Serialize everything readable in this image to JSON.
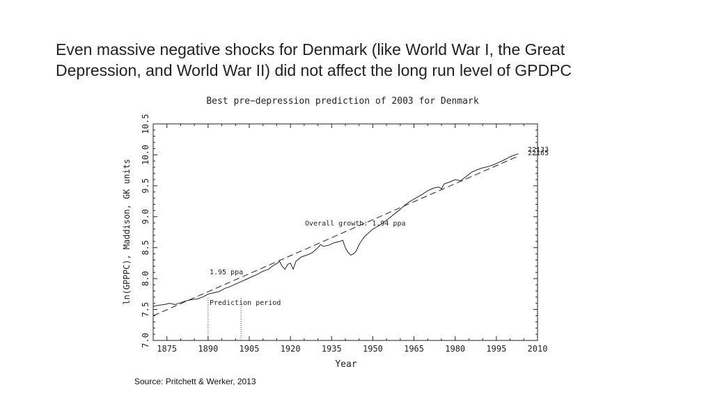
{
  "slide": {
    "title_line1": "Even massive negative shocks for Denmark (like World War I, the Great",
    "title_line2": "Depression, and World War II) did not affect the long run level of GPDPC",
    "source": "Source:  Pritchett & Werker, 2013"
  },
  "chart_data": {
    "type": "line",
    "title": "Best pre−depression prediction of 2003 for Denmark",
    "xlabel": "Year",
    "ylabel": "ln(GPPPC), Maddison, GK units",
    "xlim": [
      1870,
      2010
    ],
    "ylim": [
      7.0,
      10.5
    ],
    "x_ticks": [
      "1875",
      "1890",
      "1905",
      "1920",
      "1935",
      "1950",
      "1965",
      "1980",
      "1995",
      "2010"
    ],
    "x_tick_values": [
      1875,
      1890,
      1905,
      1920,
      1935,
      1950,
      1965,
      1980,
      1995,
      2010
    ],
    "y_ticks": [
      "7.0",
      "7.5",
      "8.0",
      "8.5",
      "9.0",
      "9.5",
      "10.0",
      "10.5"
    ],
    "y_tick_values": [
      7.0,
      7.5,
      8.0,
      8.5,
      9.0,
      9.5,
      10.0,
      10.5
    ],
    "series": [
      {
        "style": "solid",
        "x": [
          1870,
          1872,
          1874,
          1876,
          1878,
          1880,
          1882,
          1884,
          1886,
          1888,
          1890,
          1892,
          1894,
          1896,
          1898,
          1900,
          1902,
          1904,
          1906,
          1908,
          1910,
          1912,
          1914,
          1915,
          1916,
          1917,
          1918,
          1919,
          1920,
          1921,
          1922,
          1924,
          1926,
          1928,
          1930,
          1931,
          1932,
          1934,
          1936,
          1938,
          1939,
          1940,
          1941,
          1942,
          1943,
          1944,
          1945,
          1946,
          1947,
          1948,
          1950,
          1952,
          1954,
          1956,
          1958,
          1960,
          1962,
          1964,
          1966,
          1968,
          1970,
          1972,
          1974,
          1975,
          1976,
          1978,
          1980,
          1982,
          1984,
          1986,
          1988,
          1990,
          1992,
          1994,
          1996,
          1998,
          2000,
          2003
        ],
        "y": [
          7.55,
          7.57,
          7.58,
          7.6,
          7.58,
          7.61,
          7.64,
          7.66,
          7.67,
          7.7,
          7.75,
          7.77,
          7.79,
          7.84,
          7.87,
          7.91,
          7.95,
          7.99,
          8.03,
          8.07,
          8.12,
          8.15,
          8.22,
          8.24,
          8.28,
          8.2,
          8.15,
          8.23,
          8.25,
          8.15,
          8.28,
          8.35,
          8.38,
          8.42,
          8.5,
          8.55,
          8.52,
          8.54,
          8.58,
          8.6,
          8.62,
          8.5,
          8.42,
          8.38,
          8.4,
          8.45,
          8.55,
          8.62,
          8.68,
          8.72,
          8.8,
          8.85,
          8.91,
          8.98,
          9.05,
          9.12,
          9.2,
          9.26,
          9.31,
          9.36,
          9.42,
          9.46,
          9.48,
          9.45,
          9.53,
          9.56,
          9.6,
          9.58,
          9.65,
          9.72,
          9.76,
          9.79,
          9.81,
          9.84,
          9.88,
          9.92,
          9.97,
          10.02
        ]
      },
      {
        "style": "dashed",
        "x": [
          1870,
          2003
        ],
        "y": [
          7.4,
          9.98
        ]
      }
    ],
    "prediction_period": [
      1890,
      1902
    ],
    "annotations": {
      "overall_growth": "Overall growth: 1.94 ppa",
      "pre_growth": "1.95 ppa",
      "prediction_period": "Prediction period",
      "end_label_1": "22133",
      "end_label_2": "22165"
    },
    "grid": false,
    "legend": "none"
  }
}
